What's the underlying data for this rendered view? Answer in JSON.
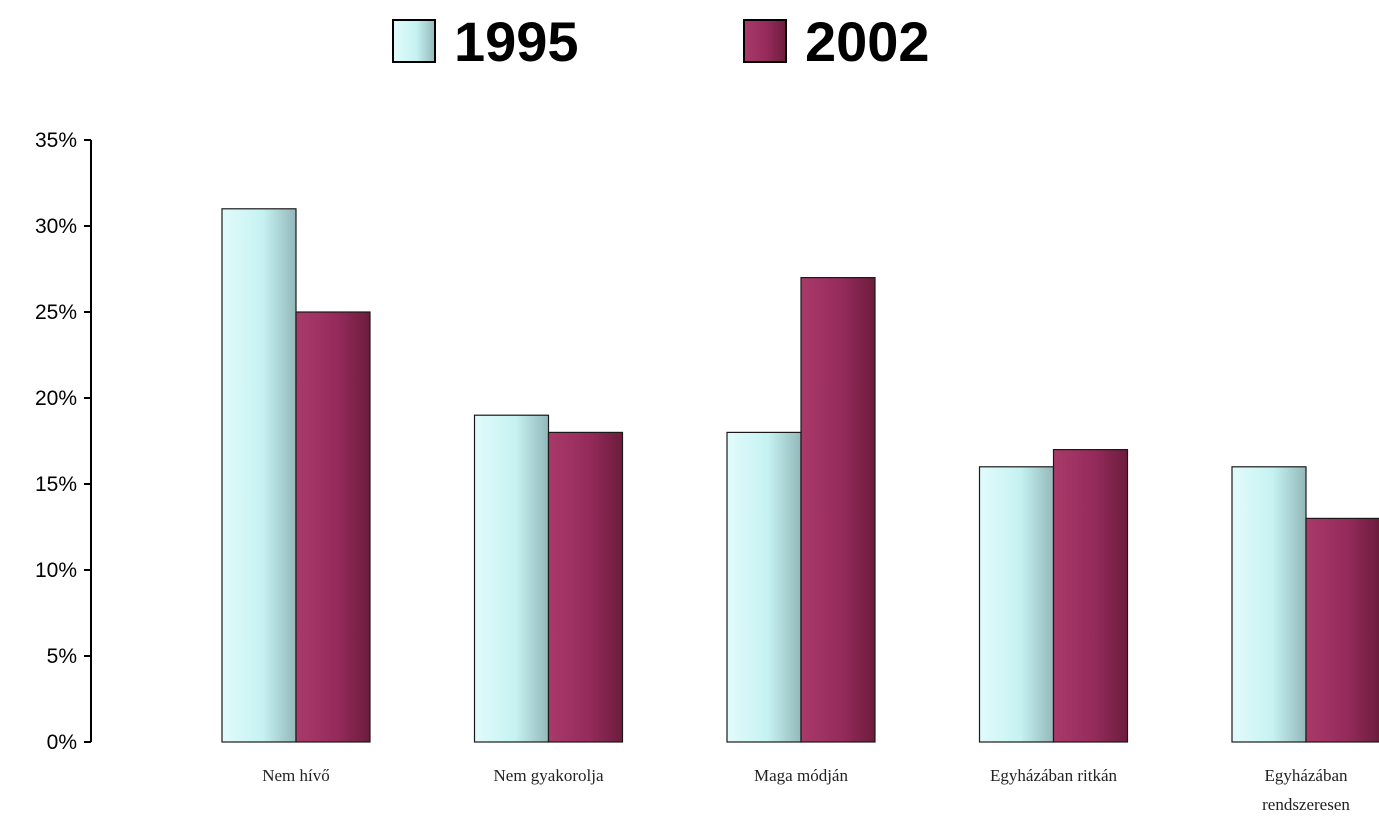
{
  "chart_data": {
    "type": "bar",
    "categories": [
      [
        "Nem hívő"
      ],
      [
        "Nem gyakorolja"
      ],
      [
        "Maga módján"
      ],
      [
        "Egyházában ritkán"
      ],
      [
        "Egyházában",
        "rendszeresen"
      ]
    ],
    "series": [
      {
        "name": "1995",
        "values": [
          31,
          19,
          18,
          16,
          16
        ],
        "color": "#c6f2f2",
        "color_light": "#e2fbfb",
        "color_dark": "#93b8ba"
      },
      {
        "name": "2002",
        "values": [
          25,
          18,
          27,
          17,
          13
        ],
        "color": "#952b5b",
        "color_light": "#a93a6a",
        "color_dark": "#6c1c3d"
      }
    ],
    "y_ticks": [
      "0%",
      "5%",
      "10%",
      "15%",
      "20%",
      "25%",
      "30%",
      "35%"
    ],
    "ylim": [
      0,
      35
    ],
    "unit": "%",
    "grid": false,
    "legend_position": "top-center"
  }
}
